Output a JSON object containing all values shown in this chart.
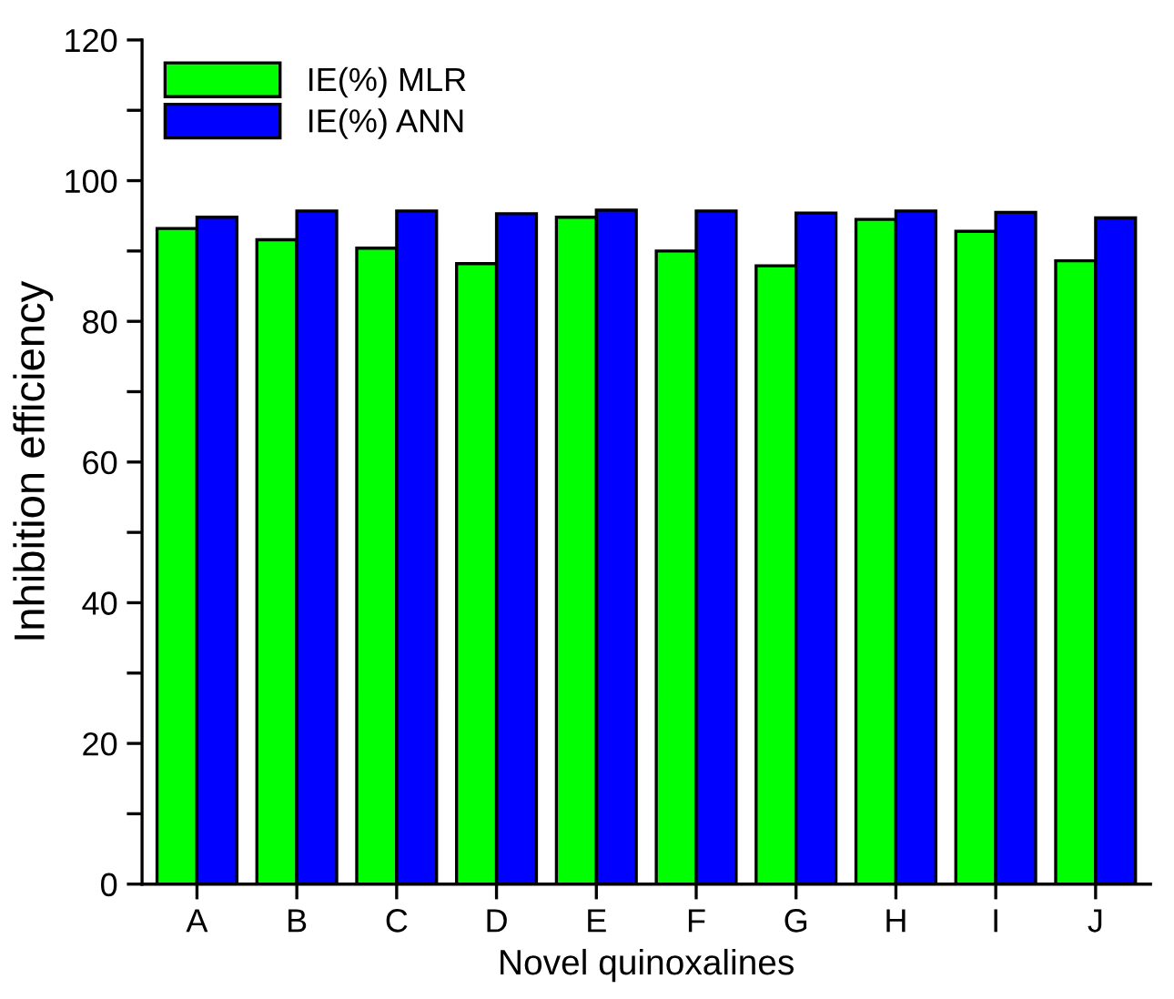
{
  "chart_data": {
    "type": "bar",
    "xlabel": "Novel quinoxalines",
    "ylabel": "Inhibition efficiency",
    "categories": [
      "A",
      "B",
      "C",
      "D",
      "E",
      "F",
      "G",
      "H",
      "I",
      "J"
    ],
    "series": [
      {
        "name": "IE(%) MLR",
        "color": "#00ff00",
        "values": [
          93.2,
          91.6,
          90.4,
          88.2,
          94.8,
          90.0,
          87.9,
          94.5,
          92.8,
          88.6
        ]
      },
      {
        "name": "IE(%) ANN",
        "color": "#0000ff",
        "values": [
          94.8,
          95.7,
          95.7,
          95.3,
          95.8,
          95.7,
          95.4,
          95.7,
          95.5,
          94.7
        ]
      }
    ],
    "ylim": [
      0,
      120
    ],
    "yticks": [
      0,
      {
        "value": 10,
        "label": null
      },
      20,
      {
        "value": 30,
        "label": null
      },
      40,
      {
        "value": 50,
        "label": null
      },
      60,
      {
        "value": 70,
        "label": null
      },
      80,
      {
        "value": 90,
        "label": null
      },
      100,
      {
        "value": 110,
        "label": null
      },
      120
    ],
    "grid": false,
    "legend": "top left"
  }
}
